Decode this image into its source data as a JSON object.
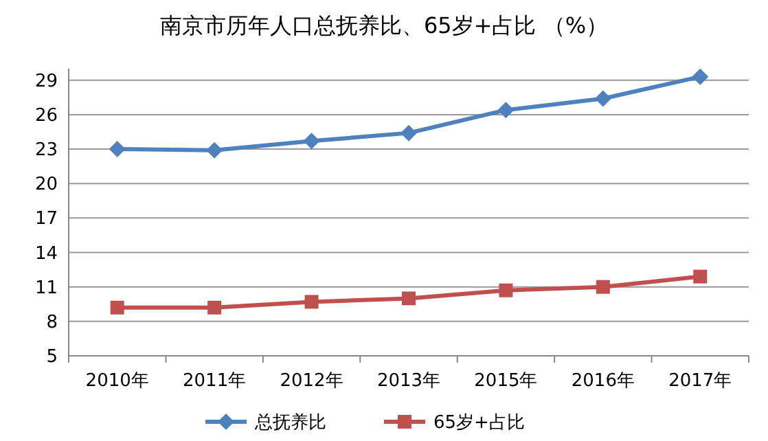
{
  "chart_data": {
    "type": "line",
    "title": "南京市历年人口总抚养比、65岁+占比 （%）",
    "categories": [
      "2010年",
      "2011年",
      "2012年",
      "2013年",
      "2015年",
      "2016年",
      "2017年"
    ],
    "series": [
      {
        "name": "总抚养比",
        "color": "#4f81bd",
        "marker": "diamond",
        "values": [
          23.0,
          22.9,
          23.7,
          24.4,
          26.4,
          27.4,
          29.3
        ]
      },
      {
        "name": "65岁+占比",
        "color": "#c0504d",
        "marker": "square",
        "values": [
          9.2,
          9.2,
          9.7,
          10.0,
          10.7,
          11.0,
          11.9
        ]
      }
    ],
    "ylim": [
      5,
      30
    ],
    "yticks": [
      5,
      8,
      11,
      14,
      17,
      20,
      23,
      26,
      29
    ],
    "grid": "y",
    "legend": "bottom",
    "line_style": "solid"
  }
}
